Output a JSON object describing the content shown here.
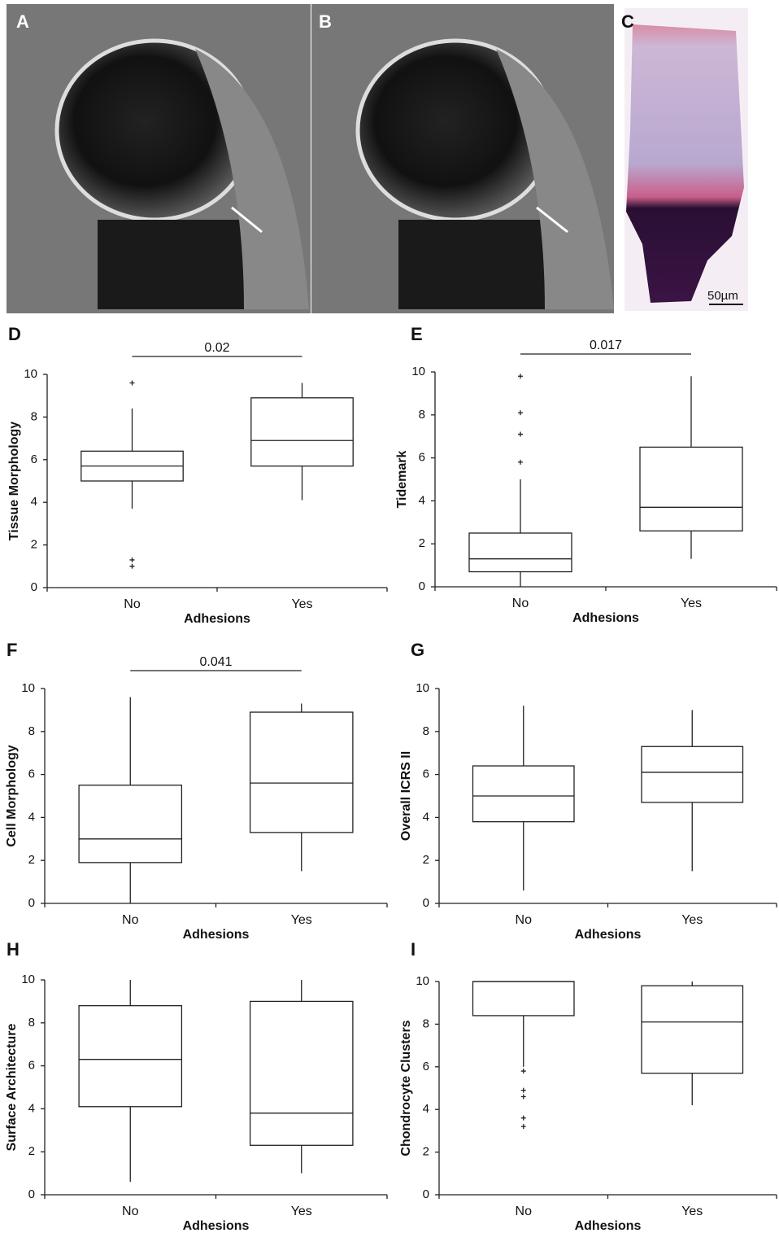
{
  "panels": [
    {
      "label": "A"
    },
    {
      "label": "B"
    },
    {
      "label": "C",
      "scale_bar": "50µm"
    }
  ],
  "chart_data": [
    {
      "type": "box",
      "label": "D",
      "ylabel": "Tissue Morphology",
      "xlabel": "Adhesions",
      "categories": [
        "No",
        "Yes"
      ],
      "ylim": [
        0,
        10
      ],
      "yticks": [
        0,
        2,
        4,
        6,
        8,
        10
      ],
      "significance": "0.02",
      "boxes": [
        {
          "whisker_low": 3.7,
          "q1": 5.0,
          "median": 5.7,
          "q3": 6.4,
          "whisker_high": 8.4,
          "outliers": [
            9.6,
            1.3,
            1.0
          ]
        },
        {
          "whisker_low": 4.1,
          "q1": 5.7,
          "median": 6.9,
          "q3": 8.9,
          "whisker_high": 9.6,
          "outliers": []
        }
      ]
    },
    {
      "type": "box",
      "label": "E",
      "ylabel": "Tidemark",
      "xlabel": "Adhesions",
      "categories": [
        "No",
        "Yes"
      ],
      "ylim": [
        0,
        10
      ],
      "yticks": [
        0,
        2,
        4,
        6,
        8,
        10
      ],
      "significance": "0.017",
      "boxes": [
        {
          "whisker_low": 0,
          "q1": 0.7,
          "median": 1.3,
          "q3": 2.5,
          "whisker_high": 5.0,
          "outliers": [
            9.8,
            8.1,
            7.1,
            5.8
          ]
        },
        {
          "whisker_low": 1.3,
          "q1": 2.6,
          "median": 3.7,
          "q3": 6.5,
          "whisker_high": 9.8,
          "outliers": []
        }
      ]
    },
    {
      "type": "box",
      "label": "F",
      "ylabel": "Cell Morphology",
      "xlabel": "Adhesions",
      "categories": [
        "No",
        "Yes"
      ],
      "ylim": [
        0,
        10
      ],
      "yticks": [
        0,
        2,
        4,
        6,
        8,
        10
      ],
      "significance": "0.041",
      "boxes": [
        {
          "whisker_low": 0,
          "q1": 1.9,
          "median": 3.0,
          "q3": 5.5,
          "whisker_high": 9.6,
          "outliers": []
        },
        {
          "whisker_low": 1.5,
          "q1": 3.3,
          "median": 5.6,
          "q3": 8.9,
          "whisker_high": 9.3,
          "outliers": []
        }
      ]
    },
    {
      "type": "box",
      "label": "G",
      "ylabel": "Overall ICRS II",
      "xlabel": "Adhesions",
      "categories": [
        "No",
        "Yes"
      ],
      "ylim": [
        0,
        10
      ],
      "yticks": [
        0,
        2,
        4,
        6,
        8,
        10
      ],
      "boxes": [
        {
          "whisker_low": 0.6,
          "q1": 3.8,
          "median": 5.0,
          "q3": 6.4,
          "whisker_high": 9.2,
          "outliers": []
        },
        {
          "whisker_low": 1.5,
          "q1": 4.7,
          "median": 6.1,
          "q3": 7.3,
          "whisker_high": 9.0,
          "outliers": []
        }
      ]
    },
    {
      "type": "box",
      "label": "H",
      "ylabel": "Surface Architecture",
      "xlabel": "Adhesions",
      "categories": [
        "No",
        "Yes"
      ],
      "ylim": [
        0,
        10
      ],
      "yticks": [
        0,
        2,
        4,
        6,
        8,
        10
      ],
      "boxes": [
        {
          "whisker_low": 0.6,
          "q1": 4.1,
          "median": 6.3,
          "q3": 8.8,
          "whisker_high": 10,
          "outliers": []
        },
        {
          "whisker_low": 1.0,
          "q1": 2.3,
          "median": 3.8,
          "q3": 9.0,
          "whisker_high": 10,
          "outliers": []
        }
      ]
    },
    {
      "type": "box",
      "label": "I",
      "ylabel": "Chondrocyte Clusters",
      "xlabel": "Adhesions",
      "categories": [
        "No",
        "Yes"
      ],
      "ylim": [
        0,
        10
      ],
      "yticks": [
        0,
        2,
        4,
        6,
        8,
        10
      ],
      "boxes": [
        {
          "whisker_low": 6.0,
          "q1": 8.4,
          "median": 10,
          "q3": 10,
          "whisker_high": 10,
          "outliers": [
            5.8,
            4.9,
            4.6,
            3.6,
            3.2
          ]
        },
        {
          "whisker_low": 4.2,
          "q1": 5.7,
          "median": 8.1,
          "q3": 9.8,
          "whisker_high": 10,
          "outliers": []
        }
      ]
    }
  ]
}
